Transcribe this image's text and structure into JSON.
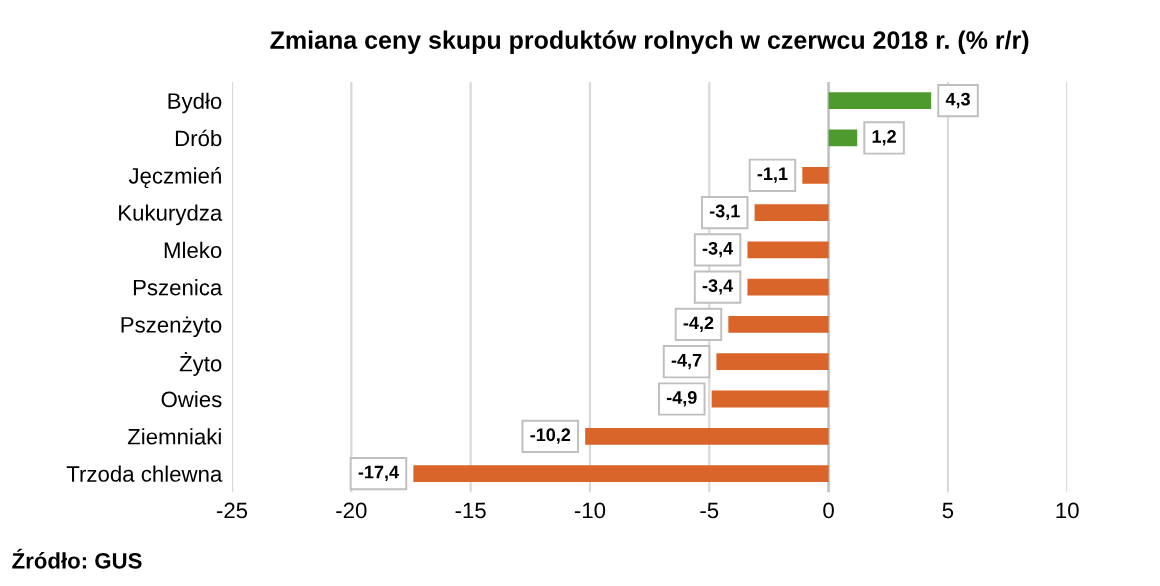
{
  "chart_data": {
    "type": "bar",
    "orientation": "horizontal",
    "title": "Zmiana ceny skupu produktów rolnych w czerwcu 2018 r. (% r/r)",
    "categories": [
      "Bydło",
      "Drób",
      "Jęczmień",
      "Kukurydza",
      "Mleko",
      "Pszenica",
      "Pszenżyto",
      "Żyto",
      "Owies",
      "Ziemniaki",
      "Trzoda chlewna"
    ],
    "values": [
      4.3,
      1.2,
      -1.1,
      -3.1,
      -3.4,
      -3.4,
      -4.2,
      -4.7,
      -4.9,
      -10.2,
      -17.4
    ],
    "value_labels": [
      "4,3",
      "1,2",
      "-1,1",
      "-3,1",
      "-3,4",
      "-3,4",
      "-4,2",
      "-4,7",
      "-4,9",
      "-10,2",
      "-17,4"
    ],
    "colors": [
      "#4e9a2f",
      "#4e9a2f",
      "#d9652b",
      "#d9652b",
      "#d9652b",
      "#d9652b",
      "#d9652b",
      "#d9652b",
      "#d9652b",
      "#d9652b",
      "#d9652b"
    ],
    "xlim": [
      -25,
      10
    ],
    "xticks": [
      -25,
      -20,
      -15,
      -10,
      -5,
      0,
      5,
      10
    ],
    "grid": "x",
    "annotations": [
      "Źródło: GUS"
    ]
  }
}
